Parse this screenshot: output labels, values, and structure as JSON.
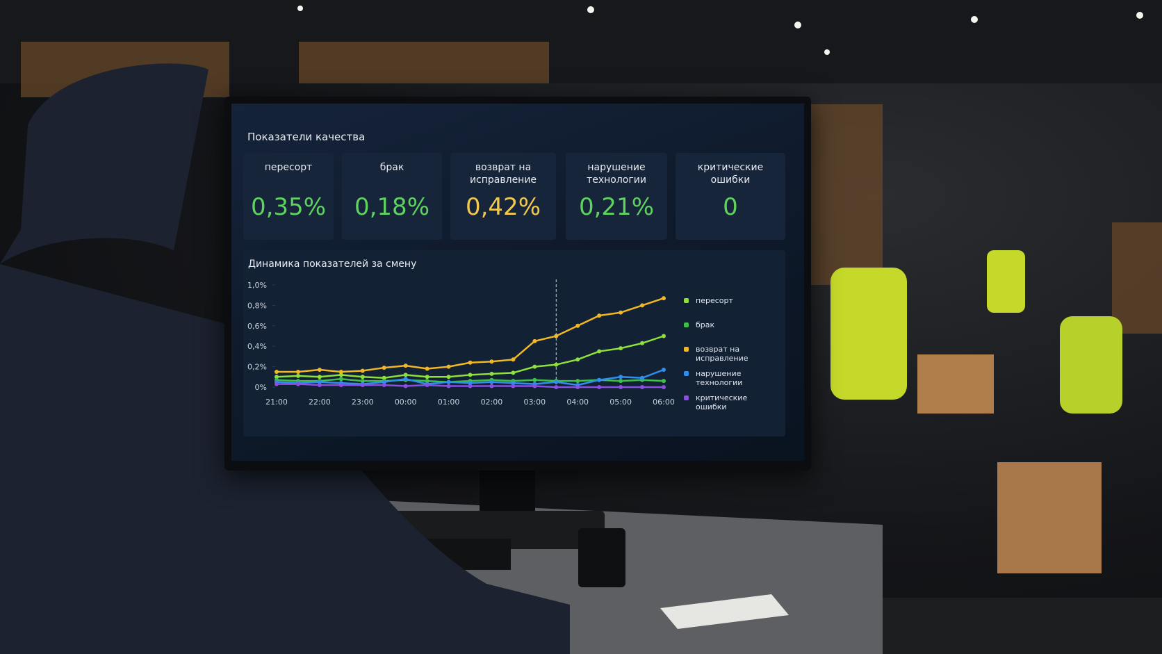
{
  "header": {
    "title": "Показатели качества"
  },
  "kpis": [
    {
      "label": "пересорт",
      "value": "0,35%",
      "color": "#5fd35f"
    },
    {
      "label": "брак",
      "value": "0,18%",
      "color": "#5fd35f"
    },
    {
      "label": "возврат на исправление",
      "value": "0,42%",
      "color": "#f2c94c"
    },
    {
      "label": "нарушение технологии",
      "value": "0,21%",
      "color": "#5fd35f"
    },
    {
      "label": "критические ошибки",
      "value": "0",
      "color": "#5fd35f"
    }
  ],
  "chart_data": {
    "type": "line",
    "title": "Динамика показателей за смену",
    "categories": [
      "21:00",
      null,
      "22:00",
      null,
      "23:00",
      null,
      "00:00",
      null,
      "01:00",
      null,
      "02:00",
      null,
      "03:00",
      null,
      "04:00",
      null,
      "05:00",
      null,
      "06:00"
    ],
    "series": [
      {
        "name": "пересорт",
        "color": "#8fe03a",
        "values": [
          0.1,
          0.11,
          0.1,
          0.12,
          0.1,
          0.09,
          0.12,
          0.1,
          0.1,
          0.12,
          0.13,
          0.14,
          0.2,
          0.22,
          0.27,
          0.35,
          0.38,
          0.43,
          0.5
        ]
      },
      {
        "name": "брак",
        "color": "#3fbf4a",
        "values": [
          0.07,
          0.06,
          0.06,
          0.08,
          0.06,
          0.06,
          0.07,
          0.06,
          0.05,
          0.06,
          0.07,
          0.06,
          0.07,
          0.06,
          0.06,
          0.07,
          0.06,
          0.07,
          0.06
        ]
      },
      {
        "name": "возврат на исправление",
        "color": "#f2b824",
        "values": [
          0.15,
          0.15,
          0.17,
          0.15,
          0.16,
          0.19,
          0.21,
          0.18,
          0.2,
          0.24,
          0.25,
          0.27,
          0.45,
          0.5,
          0.6,
          0.7,
          0.73,
          0.8,
          0.87
        ]
      },
      {
        "name": "нарушение технологии",
        "color": "#2f8ef0",
        "values": [
          0.05,
          0.04,
          0.05,
          0.04,
          0.03,
          0.05,
          0.08,
          0.03,
          0.05,
          0.04,
          0.05,
          0.04,
          0.03,
          0.05,
          0.02,
          0.07,
          0.1,
          0.09,
          0.17
        ]
      },
      {
        "name": "критические ошибки",
        "color": "#8a4fe0",
        "values": [
          0.03,
          0.03,
          0.02,
          0.02,
          0.02,
          0.02,
          0.01,
          0.02,
          0.01,
          0.01,
          0.01,
          0.01,
          0.01,
          0.0,
          0.0,
          0.0,
          0.0,
          0.0,
          0.0
        ]
      }
    ],
    "ylim": [
      0,
      1
    ],
    "yticks": [
      {
        "value": 0,
        "label": "0%"
      },
      {
        "value": 0.2,
        "label": "0,2%"
      },
      {
        "value": 0.4,
        "label": "0,4%"
      },
      {
        "value": 0.6,
        "label": "0,6%"
      },
      {
        "value": 0.8,
        "label": "0,8%"
      },
      {
        "value": 1,
        "label": "1,0%"
      }
    ],
    "grid": false
  }
}
